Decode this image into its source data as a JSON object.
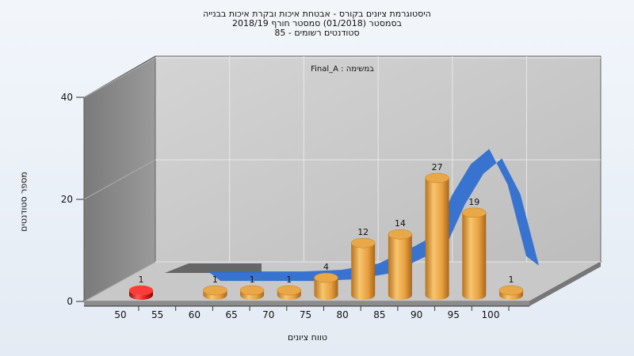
{
  "chart_data": {
    "type": "bar",
    "title_lines": [
      "היסטוגרמת ציונים בקורס - אבטחת איכות ובקרת איכות בבנייה",
      "בסמסטר  (01/2018)  סמסטר חורף  2018/19",
      "סטודנטים רשומים - 85"
    ],
    "annotation": "Final_A : במשימה",
    "xlabel": "טווח ציונים",
    "ylabel": "מספר סטודנטים",
    "x_ticks": [
      "50",
      "55",
      "60",
      "65",
      "70",
      "75",
      "80",
      "85",
      "90",
      "95",
      "100"
    ],
    "y_ticks": [
      "0",
      "20",
      "40"
    ],
    "ylim": [
      0,
      40
    ],
    "grid": true,
    "bars": [
      {
        "x": 50,
        "value": 1,
        "label": "1",
        "color": "#e01818"
      },
      {
        "x": 60,
        "value": 1,
        "label": "1",
        "color": "#e8a040"
      },
      {
        "x": 65,
        "value": 1,
        "label": "1",
        "color": "#e8a040"
      },
      {
        "x": 70,
        "value": 1,
        "label": "1",
        "color": "#e8a040"
      },
      {
        "x": 75,
        "value": 4,
        "label": "4",
        "color": "#e8a040"
      },
      {
        "x": 80,
        "value": 12,
        "label": "12",
        "color": "#e8a040"
      },
      {
        "x": 85,
        "value": 14,
        "label": "14",
        "color": "#e8a040"
      },
      {
        "x": 90,
        "value": 27,
        "label": "27",
        "color": "#e8a040"
      },
      {
        "x": 95,
        "value": 19,
        "label": "19",
        "color": "#e8a040"
      },
      {
        "x": 100,
        "value": 1,
        "label": "1",
        "color": "#e8a040"
      }
    ],
    "distribution_curve": {
      "color": "#2f6fd0",
      "x": [
        57,
        60,
        65,
        70,
        75,
        80,
        85,
        87.5,
        90,
        92.5,
        95,
        97.5,
        100
      ],
      "y": [
        2,
        2,
        2,
        2,
        2.3,
        3.5,
        7,
        9,
        17,
        23,
        26,
        19,
        5
      ]
    }
  }
}
